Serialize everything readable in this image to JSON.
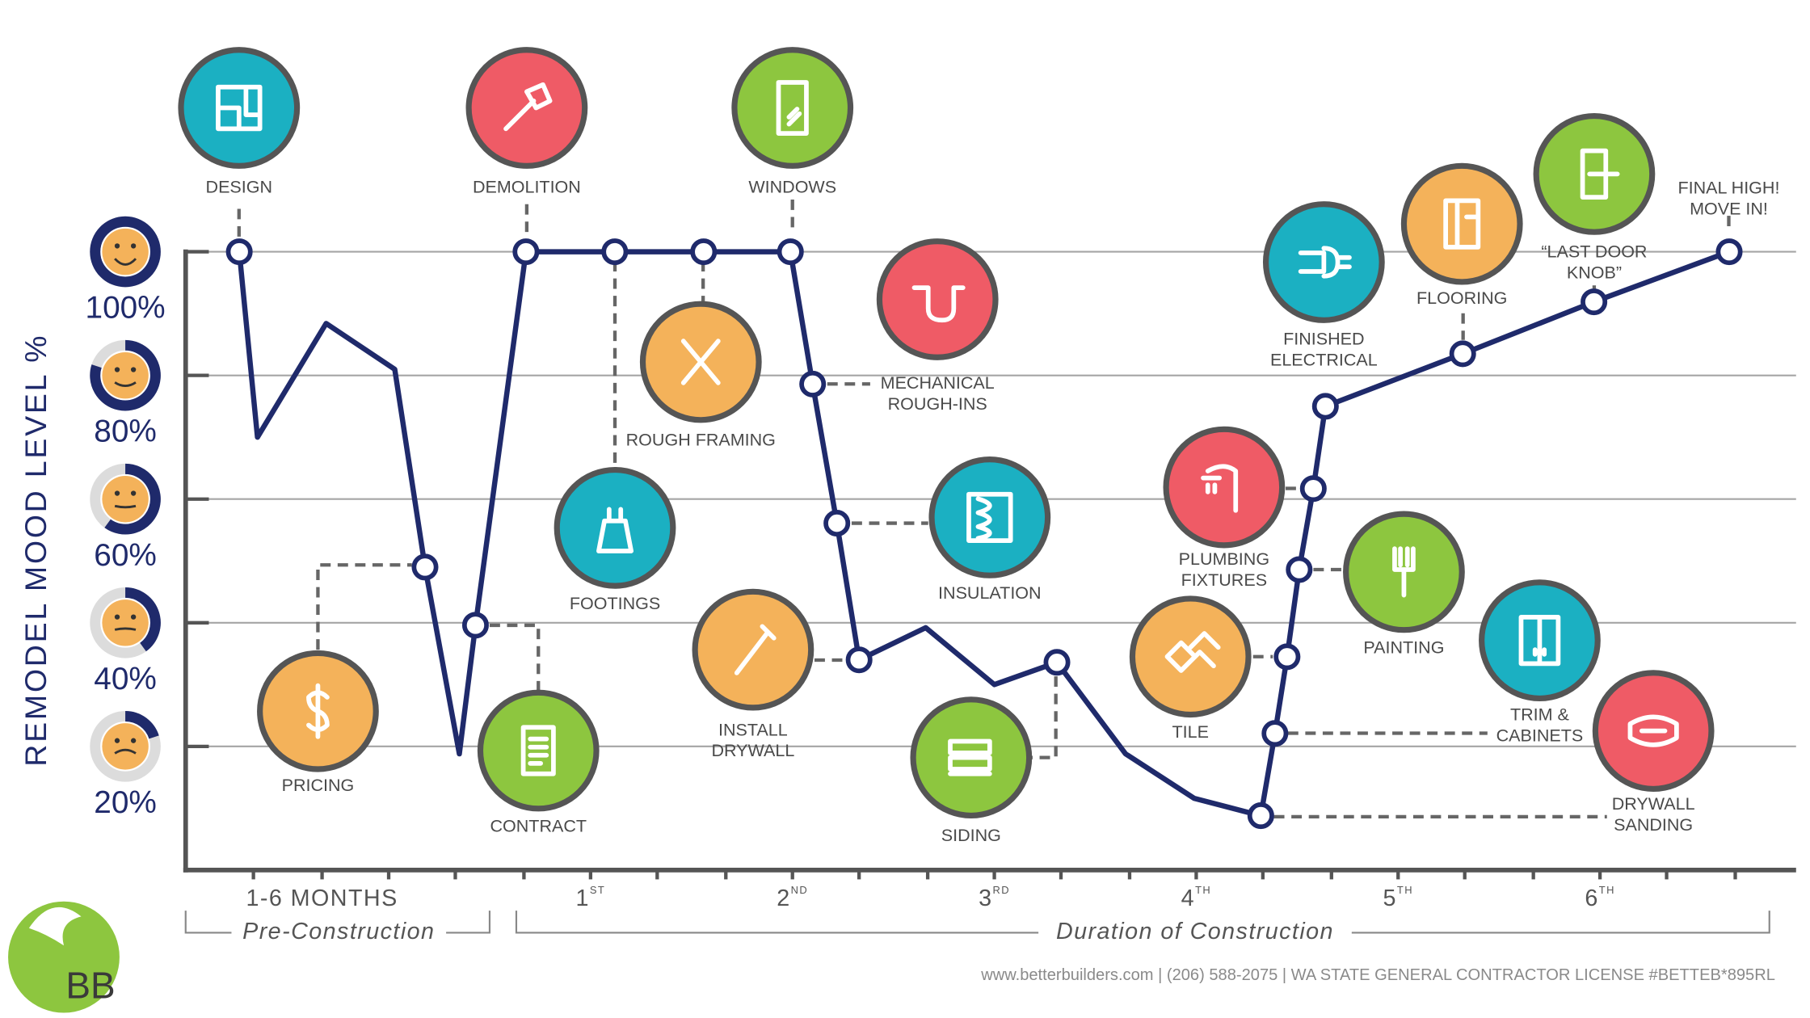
{
  "chart_data": {
    "type": "line",
    "y_label": "REMODEL MOOD LEVEL %",
    "xlim": [
      -1,
      7
    ],
    "ylim": [
      0,
      100
    ],
    "yticks": [
      {
        "value": 20,
        "label": "20%"
      },
      {
        "value": 40,
        "label": "40%"
      },
      {
        "value": 60,
        "label": "60%"
      },
      {
        "value": 80,
        "label": "80%"
      },
      {
        "value": 100,
        "label": "100%"
      }
    ],
    "xticks": [
      {
        "value": -0.33,
        "label": "1-6 MONTHS"
      },
      {
        "value": 1,
        "label": "1",
        "sup": "ST"
      },
      {
        "value": 2,
        "label": "2",
        "sup": "ND"
      },
      {
        "value": 3,
        "label": "3",
        "sup": "RD"
      },
      {
        "value": 4,
        "label": "4",
        "sup": "TH"
      },
      {
        "value": 5,
        "label": "5",
        "sup": "TH"
      },
      {
        "value": 6,
        "label": "6",
        "sup": "TH"
      }
    ],
    "xminor": [
      -0.67,
      0,
      0.33,
      0.67,
      1.33,
      1.67,
      2.33,
      2.67,
      3.33,
      3.67,
      4.33,
      4.67,
      5.33,
      5.67,
      6.33,
      6.67
    ],
    "x_groups": [
      "Pre-Construction",
      "Duration of Construction"
    ],
    "grid": true,
    "series": [
      {
        "color": "#1f2a6b",
        "x": [
          -0.74,
          -0.65,
          -0.31,
          0.03,
          0.18,
          0.35,
          0.43,
          0.68,
          1.12,
          1.56,
          1.99,
          2.1,
          2.22,
          2.33,
          2.66,
          3,
          3.31,
          3.65,
          3.99,
          4.32,
          4.39,
          4.45,
          4.51,
          4.58,
          4.64,
          5.32,
          5.97,
          6.64
        ],
        "values": [
          100,
          70,
          88.4,
          81,
          49,
          18.8,
          39.6,
          100,
          100,
          100,
          100,
          78.6,
          56.1,
          34,
          39.2,
          30,
          33.6,
          18.8,
          11.6,
          8.8,
          22.1,
          34.5,
          48.6,
          61.7,
          75,
          83.5,
          91.9,
          100
        ]
      }
    ],
    "annotations": [
      {
        "lines": [
          "DESIGN"
        ],
        "at": 0,
        "color": "#1bb0c2"
      },
      {
        "lines": [
          "PRICING"
        ],
        "at": 4,
        "color": "#f4b25a"
      },
      {
        "lines": [
          "CONTRACT"
        ],
        "at": 6,
        "color": "#8dc63f"
      },
      {
        "lines": [
          "DEMOLITION"
        ],
        "at": 7,
        "color": "#ef5b66"
      },
      {
        "lines": [
          "FOOTINGS"
        ],
        "at": 8,
        "color": "#1bb0c2"
      },
      {
        "lines": [
          "ROUGH FRAMING"
        ],
        "at": 9,
        "color": "#f4b25a"
      },
      {
        "lines": [
          "WINDOWS"
        ],
        "at": 10,
        "color": "#8dc63f"
      },
      {
        "lines": [
          "MECHANICAL",
          "ROUGH-INS"
        ],
        "at": 11,
        "color": "#ef5b66"
      },
      {
        "lines": [
          "INSULATION"
        ],
        "at": 12,
        "color": "#1bb0c2"
      },
      {
        "lines": [
          "INSTALL",
          "DRYWALL"
        ],
        "at": 13,
        "color": "#f4b25a"
      },
      {
        "lines": [
          "SIDING"
        ],
        "at": 16,
        "color": "#8dc63f"
      },
      {
        "lines": [
          "DRYWALL",
          "SANDING"
        ],
        "at": 19,
        "color": "#ef5b66"
      },
      {
        "lines": [
          "TRIM &",
          "CABINETS"
        ],
        "at": 20,
        "color": "#1bb0c2"
      },
      {
        "lines": [
          "TILE"
        ],
        "at": 21,
        "color": "#f4b25a"
      },
      {
        "lines": [
          "PAINTING"
        ],
        "at": 22,
        "color": "#8dc63f"
      },
      {
        "lines": [
          "PLUMBING",
          "FIXTURES"
        ],
        "at": 23,
        "color": "#ef5b66"
      },
      {
        "lines": [
          "FINISHED",
          "ELECTRICAL"
        ],
        "at": 24,
        "color": "#1bb0c2"
      },
      {
        "lines": [
          "FLOORING"
        ],
        "at": 25,
        "color": "#f4b25a"
      },
      {
        "lines": [
          "“LAST DOOR",
          "KNOB”"
        ],
        "at": 26,
        "color": "#8dc63f"
      },
      {
        "lines": [
          "FINAL HIGH!",
          "MOVE IN!"
        ],
        "at": 27
      }
    ]
  },
  "footer": "www.betterbuilders.com | (206) 588-2075 | WA STATE GENERAL CONTRACTOR LICENSE #BETTEB*895RL",
  "logo": "BB"
}
